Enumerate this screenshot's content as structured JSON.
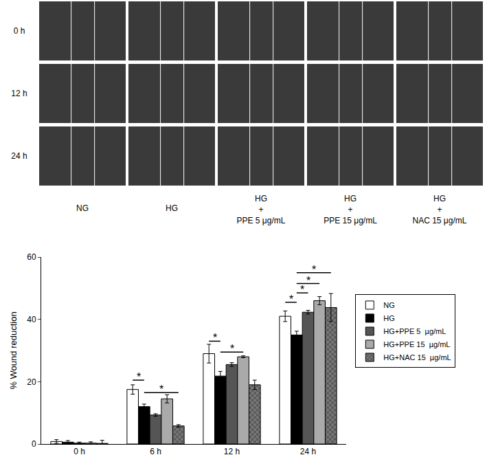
{
  "photo_panel": {
    "rows": [
      "0 h",
      "12 h",
      "24 h"
    ],
    "columns": [
      [
        "NG"
      ],
      [
        "HG"
      ],
      [
        "HG",
        "+",
        "PPE 5 μg/mL"
      ],
      [
        "HG",
        "+",
        "PPE 15 μg/mL"
      ],
      [
        "HG",
        "+",
        "NAC 15 μg/mL"
      ]
    ]
  },
  "chart_data": {
    "type": "bar",
    "y_label": "% Wound reduction",
    "categories": [
      "0 h",
      "6 h",
      "12 h",
      "24 h"
    ],
    "series": [
      {
        "name": "NG",
        "color": "#ffffff",
        "marker": "solid",
        "values": [
          0.8,
          17.5,
          29.0,
          41.0
        ],
        "errors": [
          0.6,
          1.5,
          3.0,
          1.7
        ]
      },
      {
        "name": "HG",
        "color": "#000000",
        "marker": "solid",
        "values": [
          0.6,
          12.0,
          21.8,
          35.0
        ],
        "errors": [
          0.5,
          0.8,
          1.5,
          1.2
        ]
      },
      {
        "name": "HG+PPE 5  µg/mL",
        "color": "#555555",
        "marker": "solid",
        "values": [
          0.3,
          9.3,
          25.5,
          42.3
        ],
        "errors": [
          0.3,
          0.4,
          0.6,
          0.6
        ]
      },
      {
        "name": "HG+PPE 15  µg/mL",
        "color": "#aaaaaa",
        "marker": "solid",
        "values": [
          0.3,
          14.5,
          28.0,
          46.0
        ],
        "errors": [
          0.4,
          1.3,
          0.3,
          1.3
        ]
      },
      {
        "name": "HG+NAC 15  µg/mL",
        "color": "#777777",
        "marker": "checkered",
        "values": [
          0.2,
          5.8,
          19.0,
          43.8
        ],
        "errors": [
          1.0,
          0.4,
          1.5,
          4.5
        ]
      }
    ],
    "ylim": [
      0,
      60
    ],
    "yticks": [
      0,
      20,
      40,
      60
    ],
    "grid": false,
    "legend": "right",
    "significance": [
      {
        "category": "6 h",
        "from": "NG",
        "to": "HG",
        "y": 20.5,
        "label": "*"
      },
      {
        "category": "6 h",
        "from": "HG",
        "to": "HG+NAC 15  µg/mL",
        "y": 16.5,
        "label": "*"
      },
      {
        "category": "12 h",
        "from": "NG",
        "to": "HG",
        "y": 33,
        "label": "*"
      },
      {
        "category": "12 h",
        "from": "HG",
        "to": "HG+PPE 15  µg/mL",
        "y": 29.5,
        "label": "*"
      },
      {
        "category": "24 h",
        "from": "NG",
        "to": "HG",
        "y": 45.5,
        "label": "*"
      },
      {
        "category": "24 h",
        "from": "HG",
        "to": "HG+PPE 5  µg/mL",
        "y": 48.5,
        "label": "*"
      },
      {
        "category": "24 h",
        "from": "HG",
        "to": "HG+PPE 15  µg/mL",
        "y": 51.5,
        "label": "*"
      },
      {
        "category": "24 h",
        "from": "HG",
        "to": "HG+NAC 15  µg/mL",
        "y": 55,
        "label": "*"
      }
    ]
  }
}
